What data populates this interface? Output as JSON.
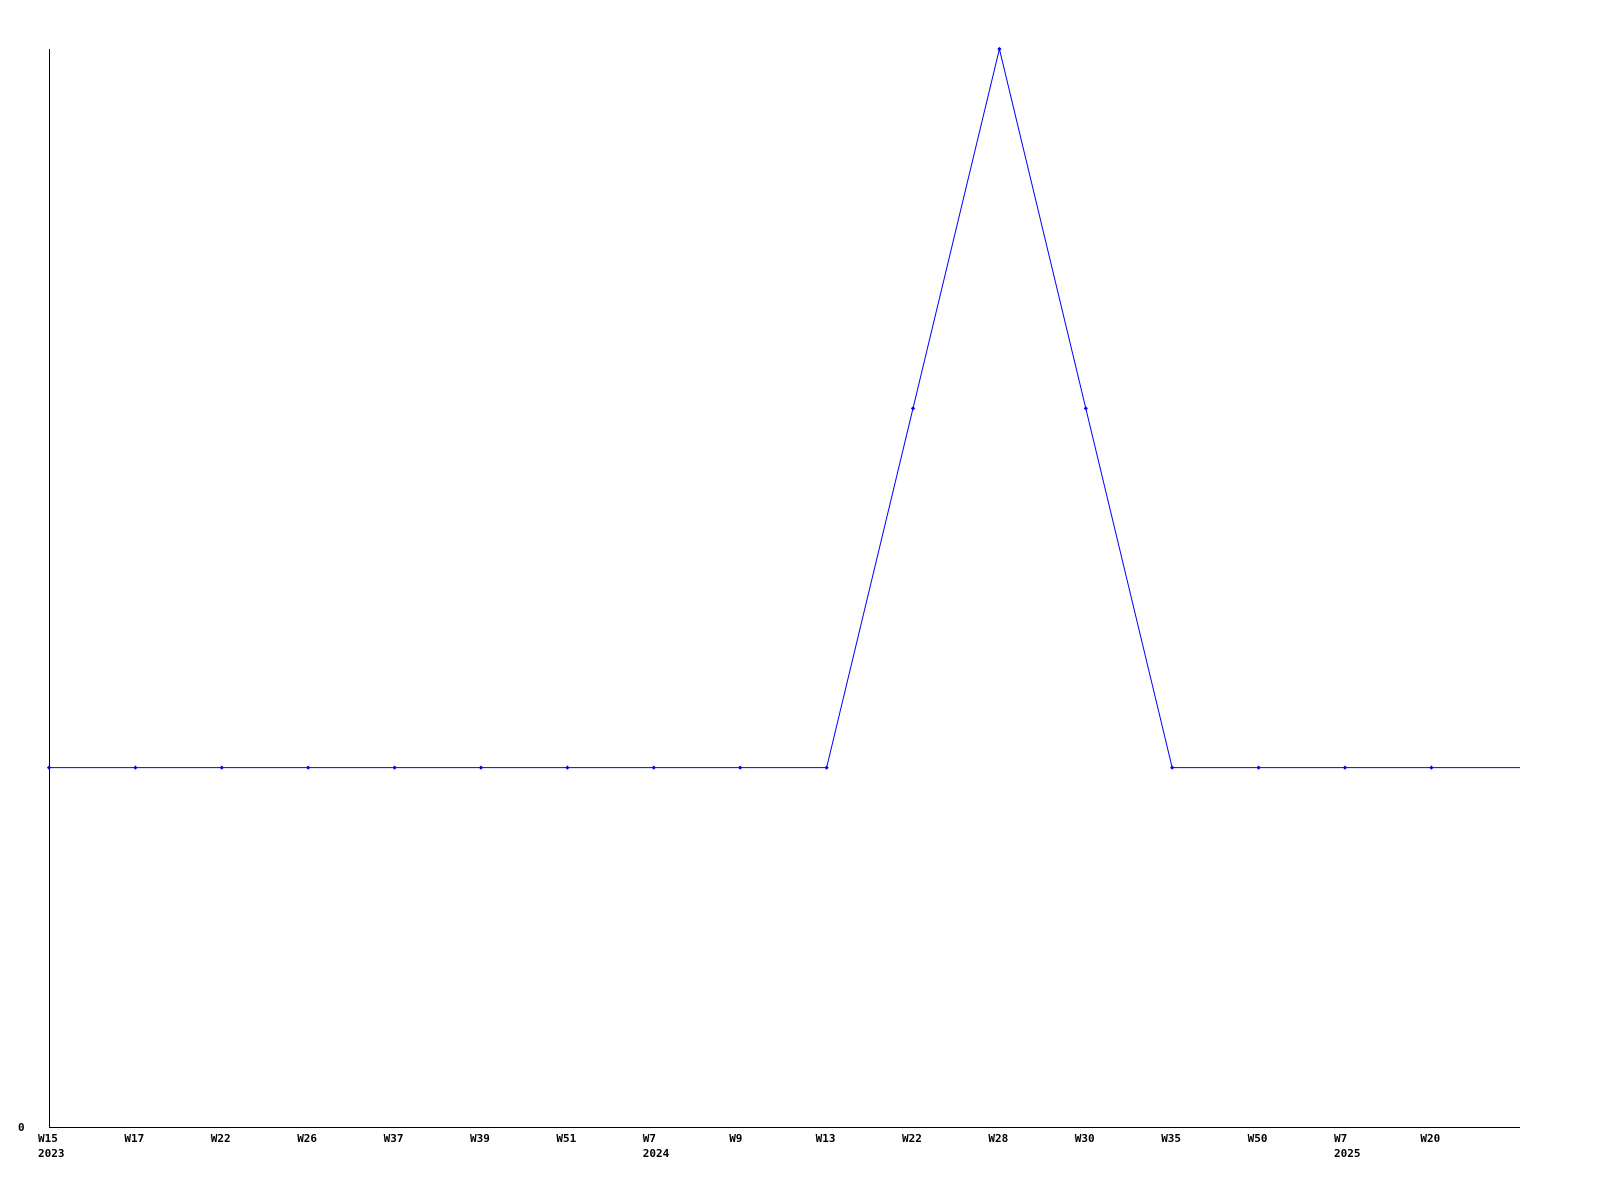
{
  "chart_data": {
    "type": "line",
    "title": "",
    "xlabel": "",
    "ylabel": "",
    "x": [
      "W15",
      "W17",
      "W22",
      "W26",
      "W37",
      "W39",
      "W51",
      "W7",
      "W9",
      "W13",
      "W22",
      "W28",
      "W30",
      "W35",
      "W50",
      "W7",
      "W20"
    ],
    "year_labels": [
      {
        "index": 0,
        "label": "2023"
      },
      {
        "index": 7,
        "label": "2024"
      },
      {
        "index": 15,
        "label": "2025"
      }
    ],
    "y_tick_labels": [
      "0"
    ],
    "series": [
      {
        "values": [
          1,
          1,
          1,
          1,
          1,
          1,
          1,
          1,
          1,
          1,
          2,
          3,
          2,
          1,
          1,
          1,
          1
        ],
        "color": "#0000ff"
      }
    ],
    "continues_past_last_point": true,
    "ylim": [
      0,
      3
    ],
    "grid": false,
    "legend": "none"
  }
}
